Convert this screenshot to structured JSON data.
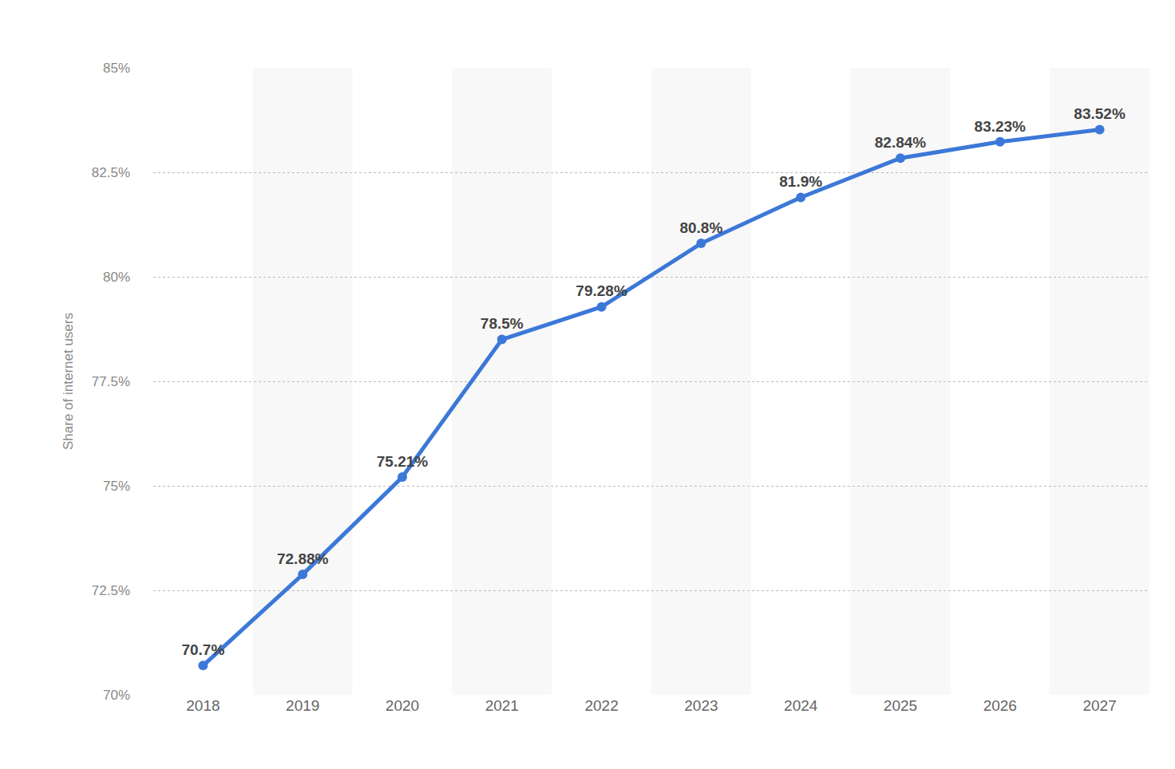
{
  "chart_data": {
    "type": "line",
    "y_label": "Share of internet users",
    "categories": [
      "2018",
      "2019",
      "2020",
      "2021",
      "2022",
      "2023",
      "2024",
      "2025",
      "2026",
      "2027"
    ],
    "values": [
      70.7,
      72.88,
      75.21,
      78.5,
      79.28,
      80.8,
      81.9,
      82.84,
      83.23,
      83.52
    ],
    "value_labels": [
      "70.7%",
      "72.88%",
      "75.21%",
      "78.5%",
      "79.28%",
      "80.8%",
      "81.9%",
      "82.84%",
      "83.23%",
      "83.52%"
    ],
    "data_labels": true,
    "color": "#3c78d8",
    "marker": "circle",
    "line_style": "solid",
    "ylim": [
      70,
      85
    ],
    "yticks": [
      {
        "value": 70,
        "label": "70%"
      },
      {
        "value": 72.5,
        "label": "72.5%"
      },
      {
        "value": 75,
        "label": "75%"
      },
      {
        "value": 77.5,
        "label": "77.5%"
      },
      {
        "value": 80,
        "label": "80%"
      },
      {
        "value": 82.5,
        "label": "82.5%"
      },
      {
        "value": 85,
        "label": "85%"
      }
    ],
    "grid": true
  }
}
